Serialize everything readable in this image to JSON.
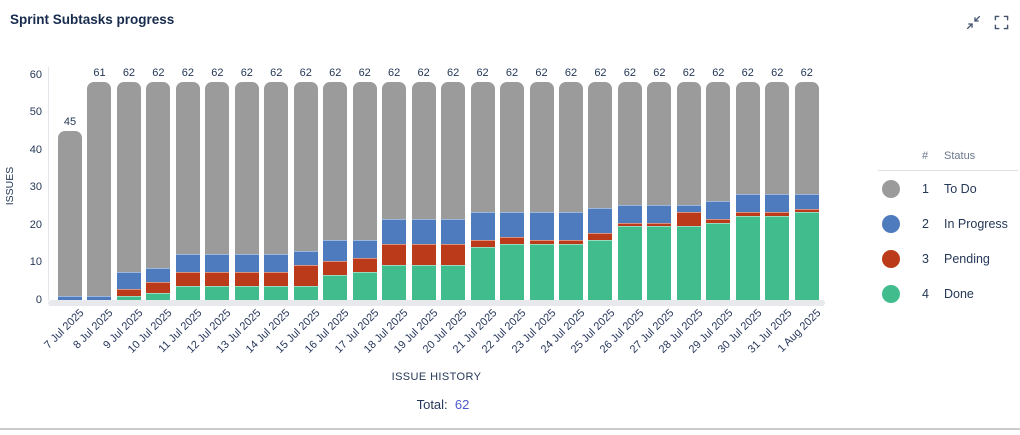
{
  "header": {
    "title": "Sprint Subtasks progress",
    "icons": [
      {
        "name": "collapse-icon"
      },
      {
        "name": "fullscreen-icon"
      }
    ]
  },
  "chart_data": {
    "type": "bar",
    "stacked": true,
    "title": "Sprint Subtasks progress",
    "xlabel": "ISSUE HISTORY",
    "ylabel": "ISSUES",
    "ylim": [
      0,
      62
    ],
    "yticks": [
      0,
      10,
      20,
      30,
      40,
      50,
      60
    ],
    "grid": false,
    "legend_position": "right",
    "categories": [
      "7 Jul 2025",
      "8 Jul 2025",
      "9 Jul 2025",
      "10 Jul 2025",
      "11 Jul 2025",
      "12 Jul 2025",
      "13 Jul 2025",
      "14 Jul 2025",
      "15 Jul 2025",
      "16 Jul 2025",
      "17 Jul 2025",
      "18 Jul 2025",
      "19 Jul 2025",
      "20 Jul 2025",
      "21 Jul 2025",
      "22 Jul 2025",
      "23 Jul 2025",
      "24 Jul 2025",
      "25 Jul 2025",
      "26 Jul 2025",
      "27 Jul 2025",
      "28 Jul 2025",
      "29 Jul 2025",
      "30 Jul 2025",
      "31 Jul 2025",
      "1 Aug 2025"
    ],
    "bar_total_labels": [
      45,
      61,
      62,
      62,
      62,
      62,
      62,
      62,
      62,
      62,
      62,
      62,
      62,
      62,
      62,
      62,
      62,
      62,
      62,
      62,
      62,
      62,
      62,
      62,
      62,
      62
    ],
    "series": [
      {
        "name": "Done",
        "color": "#41BD8D",
        "values": [
          0,
          0,
          1,
          2,
          4,
          4,
          4,
          4,
          4,
          7,
          8,
          10,
          10,
          10,
          15,
          16,
          16,
          16,
          17,
          21,
          21,
          21,
          22,
          24,
          24,
          25
        ]
      },
      {
        "name": "Pending",
        "color": "#BA3A1A",
        "values": [
          0,
          0,
          2,
          3,
          4,
          4,
          4,
          4,
          6,
          4,
          4,
          6,
          6,
          6,
          2,
          2,
          1,
          1,
          2,
          1,
          1,
          4,
          1,
          1,
          1,
          1
        ]
      },
      {
        "name": "In Progress",
        "color": "#4E7BBE",
        "values": [
          1,
          1,
          5,
          4,
          5,
          5,
          5,
          5,
          4,
          6,
          5,
          7,
          7,
          7,
          8,
          7,
          8,
          8,
          7,
          5,
          5,
          2,
          5,
          5,
          5,
          4
        ]
      },
      {
        "name": "To Do",
        "color": "#9B9B9B",
        "values": [
          44,
          60,
          54,
          53,
          49,
          49,
          49,
          49,
          48,
          45,
          45,
          39,
          39,
          39,
          37,
          37,
          37,
          37,
          36,
          35,
          35,
          35,
          34,
          32,
          32,
          32
        ]
      }
    ]
  },
  "legend": {
    "col_hash": "#",
    "col_status": "Status",
    "rows": [
      {
        "num": "1",
        "label": "To Do",
        "color": "#9B9B9B"
      },
      {
        "num": "2",
        "label": "In Progress",
        "color": "#4E7BBE"
      },
      {
        "num": "3",
        "label": "Pending",
        "color": "#BA3A1A"
      },
      {
        "num": "4",
        "label": "Done",
        "color": "#41BD8D"
      }
    ]
  },
  "footer": {
    "total_label": "Total:",
    "total_value": "62"
  }
}
